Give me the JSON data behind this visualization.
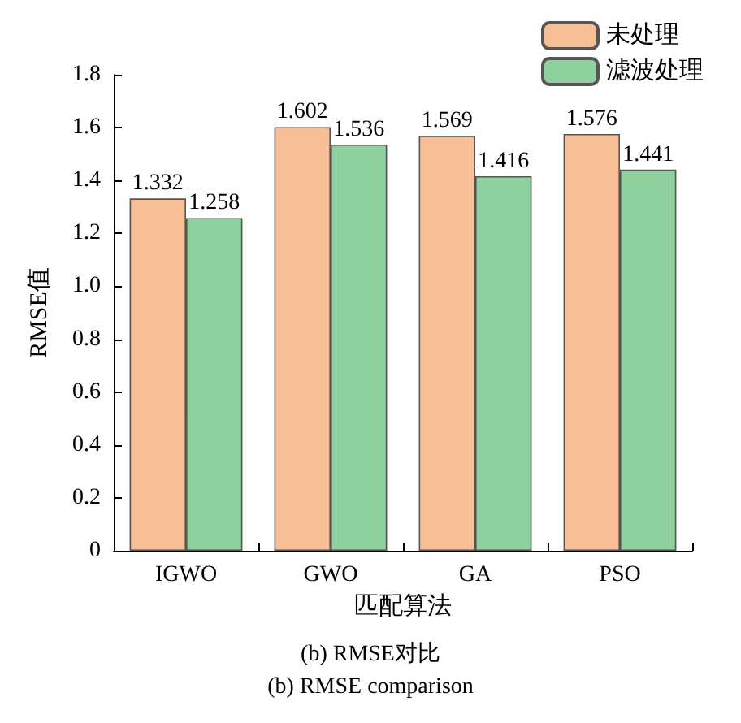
{
  "chart_data": {
    "type": "bar",
    "title": "(b) RMSE对比",
    "subtitle": "(b) RMSE comparison",
    "xlabel": "匹配算法",
    "ylabel": "RMSE值",
    "categories": [
      "IGWO",
      "GWO",
      "GA",
      "PSO"
    ],
    "series": [
      {
        "name": "未处理",
        "color": "#f8be96",
        "values": [
          1.332,
          1.602,
          1.569,
          1.576
        ]
      },
      {
        "name": "滤波处理",
        "color": "#8fd19e",
        "values": [
          1.258,
          1.536,
          1.416,
          1.441
        ]
      }
    ],
    "ylim": [
      0,
      1.8
    ],
    "yticks": [
      0,
      0.2,
      0.4,
      0.6,
      0.8,
      {
        "value": 1,
        "label": "1.0"
      },
      1.2,
      1.4,
      1.6,
      1.8
    ],
    "data_labels": true,
    "grid": false,
    "legend": "top right"
  }
}
